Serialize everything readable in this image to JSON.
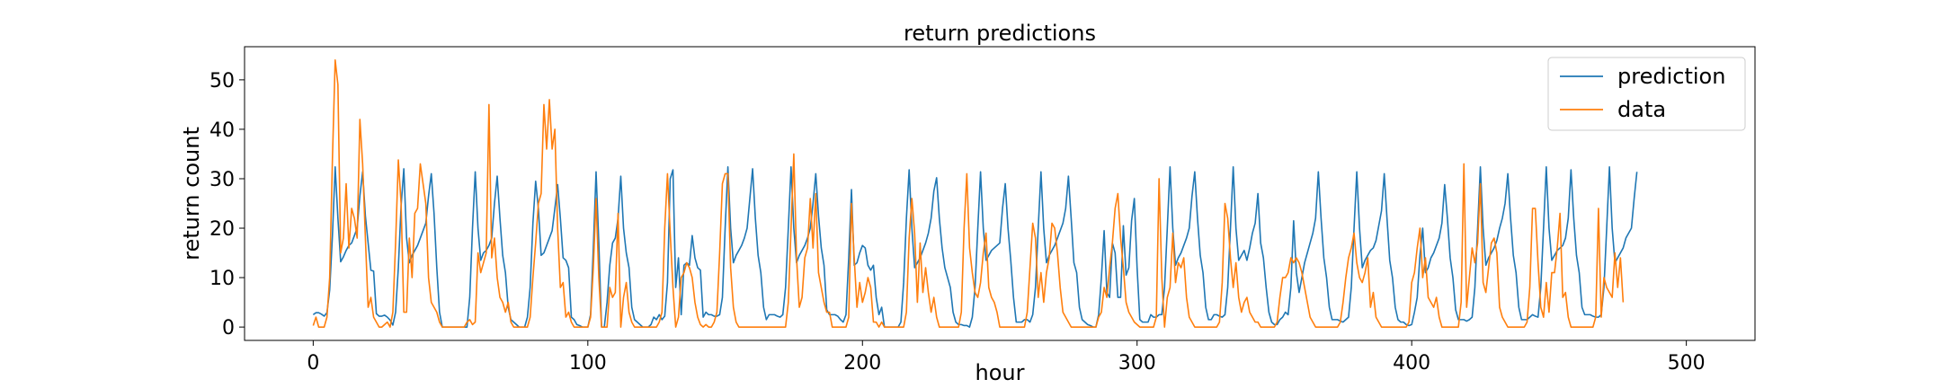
{
  "chart_data": {
    "type": "line",
    "title": "return predictions",
    "xlabel": "hour",
    "ylabel": "return count",
    "xlim": [
      -25,
      525
    ],
    "ylim": [
      -2.7,
      56.7
    ],
    "xticks": [
      0,
      100,
      200,
      300,
      400,
      500
    ],
    "yticks": [
      0,
      10,
      20,
      30,
      40,
      50
    ],
    "grid": false,
    "legend_position": "top-right",
    "colors": {
      "prediction": "#1f77b4",
      "data": "#ff7f0e"
    },
    "series": [
      {
        "name": "prediction",
        "color": "#1f77b4",
        "values": [
          2.5,
          2.9,
          2.9,
          2.6,
          2.2,
          2.9,
          7.5,
          18.5,
          32.4,
          22.0,
          13.2,
          14.2,
          15.5,
          16.5,
          17.0,
          18.5,
          20.0,
          26.5,
          31.4,
          22.5,
          17.0,
          11.5,
          11.3,
          2.7,
          2.2,
          2.2,
          2.4,
          2.0,
          1.4,
          0.4,
          3.0,
          12.0,
          24.5,
          32.0,
          18.0,
          13.0,
          14.5,
          15.5,
          16.5,
          18.0,
          19.5,
          21.0,
          26.5,
          31.0,
          23.0,
          12.0,
          3.0,
          0.0,
          0.0,
          0.0,
          0.0,
          0.0,
          0.0,
          0.0,
          0.0,
          0.0,
          0.0,
          6.0,
          20.0,
          31.4,
          20.0,
          13.5,
          15.0,
          15.5,
          16.5,
          18.0,
          25.0,
          30.5,
          22.0,
          14.5,
          11.0,
          4.0,
          1.5,
          1.0,
          0.5,
          0.0,
          0.0,
          0.0,
          2.0,
          8.0,
          21.0,
          29.5,
          24.0,
          14.5,
          15.0,
          16.5,
          18.0,
          19.5,
          24.0,
          28.8,
          22.0,
          14.0,
          13.5,
          12.0,
          2.0,
          1.5,
          0.5,
          0.3,
          0.0,
          0.0,
          0.0,
          2.5,
          16.0,
          31.4,
          17.0,
          0.0,
          0.0,
          5.0,
          12.5,
          17.0,
          18.0,
          22.0,
          30.5,
          20.0,
          15.0,
          12.0,
          4.0,
          1.5,
          1.0,
          0.5,
          0.0,
          0.0,
          0.0,
          0.5,
          2.0,
          1.5,
          2.5,
          1.5,
          2.2,
          9.0,
          30.0,
          31.8,
          8.0,
          14.0,
          2.5,
          12.5,
          13.0,
          12.5,
          18.5,
          14.0,
          12.0,
          11.5,
          2.0,
          3.0,
          2.5,
          2.5,
          2.2,
          2.2,
          2.5,
          6.0,
          20.0,
          32.4,
          20.0,
          13.0,
          14.5,
          15.5,
          16.5,
          18.0,
          20.0,
          26.0,
          32.0,
          22.0,
          14.5,
          11.0,
          4.0,
          1.5,
          2.5,
          2.5,
          2.5,
          2.2,
          2.0,
          2.5,
          8.0,
          20.0,
          32.4,
          20.0,
          13.0,
          14.5,
          15.5,
          16.5,
          18.0,
          20.0,
          25.0,
          31.0,
          22.5,
          16.0,
          12.5,
          3.5,
          2.5,
          2.5,
          2.5,
          2.2,
          1.5,
          1.0,
          2.5,
          14.0,
          27.8,
          12.5,
          13.0,
          15.0,
          16.5,
          16.0,
          12.5,
          11.5,
          12.5,
          6.0,
          2.5,
          4.0,
          0.0,
          0.0,
          0.0,
          0.0,
          0.0,
          0.0,
          1.0,
          9.0,
          22.0,
          31.8,
          20.0,
          12.0,
          13.0,
          14.0,
          15.5,
          17.0,
          19.0,
          22.0,
          27.5,
          30.2,
          22.0,
          16.0,
          12.0,
          10.0,
          8.0,
          3.0,
          1.0,
          0.5,
          0.5,
          0.3,
          0.3,
          0.0,
          2.0,
          8.0,
          20.0,
          31.4,
          20.0,
          13.5,
          14.5,
          15.5,
          16.0,
          16.5,
          17.0,
          24.0,
          29.0,
          20.0,
          13.5,
          6.0,
          1.0,
          1.0,
          1.0,
          1.5,
          1.5,
          1.0,
          2.5,
          8.0,
          20.0,
          31.4,
          20.0,
          13.0,
          14.5,
          15.5,
          16.5,
          18.0,
          19.5,
          21.0,
          24.0,
          30.5,
          22.0,
          13.0,
          11.0,
          4.0,
          1.5,
          1.0,
          0.5,
          0.3,
          0.0,
          0.0,
          2.5,
          10.0,
          19.5,
          7.0,
          6.0,
          17.0,
          15.0,
          6.0,
          6.0,
          20.5,
          10.5,
          12.0,
          21.5,
          26.0,
          12.0,
          1.5,
          1.0,
          1.0,
          1.0,
          2.5,
          2.0,
          2.0,
          2.5,
          2.5,
          8.0,
          20.0,
          32.4,
          20.0,
          12.5,
          14.0,
          15.0,
          16.5,
          18.0,
          20.0,
          26.5,
          31.4,
          22.0,
          14.5,
          11.0,
          4.0,
          1.5,
          1.5,
          2.5,
          2.5,
          2.2,
          2.0,
          2.5,
          8.0,
          20.0,
          32.4,
          20.0,
          13.5,
          14.5,
          15.5,
          13.5,
          16.0,
          19.0,
          21.0,
          27.0,
          17.0,
          14.0,
          8.0,
          3.0,
          1.0,
          0.5,
          0.5,
          1.5,
          2.0,
          3.0,
          2.5,
          8.0,
          21.5,
          11.0,
          7.0,
          10.0,
          13.0,
          15.0,
          17.0,
          19.0,
          22.0,
          31.4,
          22.0,
          14.0,
          10.0,
          4.0,
          1.5,
          1.5,
          1.5,
          1.2,
          1.0,
          1.5,
          2.0,
          8.0,
          20.0,
          31.4,
          20.0,
          12.0,
          13.5,
          14.5,
          15.5,
          16.0,
          17.5,
          20.5,
          23.5,
          31.0,
          22.0,
          13.5,
          10.0,
          4.0,
          1.5,
          1.0,
          1.0,
          0.5,
          0.3,
          0.5,
          3.0,
          6.0,
          14.5,
          20.0,
          11.0,
          12.0,
          14.0,
          15.0,
          16.5,
          18.0,
          21.0,
          28.8,
          22.0,
          14.0,
          10.0,
          3.5,
          1.5,
          1.5,
          1.5,
          1.2,
          1.5,
          2.0,
          8.0,
          20.0,
          32.4,
          20.0,
          12.5,
          14.0,
          15.0,
          16.0,
          17.5,
          20.0,
          22.0,
          25.0,
          31.0,
          22.0,
          14.5,
          11.0,
          4.0,
          1.5,
          1.5,
          1.5,
          2.0,
          2.5,
          2.2,
          2.0,
          8.0,
          20.0,
          32.4,
          20.0,
          13.5,
          14.5,
          15.5,
          16.0,
          16.5,
          18.0,
          22.0,
          31.8,
          22.0,
          14.5,
          11.0,
          4.0,
          2.5,
          2.5,
          2.5,
          2.2,
          2.0,
          2.0,
          2.5,
          8.0,
          20.0,
          32.4,
          20.0,
          13.0,
          14.0,
          15.0,
          16.0,
          18.0,
          19.0,
          20.0,
          26.0,
          31.4
        ]
      },
      {
        "name": "data",
        "color": "#ff7f0e",
        "values": [
          0.3,
          2.0,
          0.0,
          0.0,
          0.0,
          2.0,
          10.0,
          34.0,
          54.0,
          49.0,
          15.0,
          18.0,
          29.0,
          16.0,
          24.0,
          22.0,
          18.0,
          42.0,
          33.0,
          18.0,
          4.0,
          6.0,
          2.0,
          1.0,
          0.0,
          0.0,
          0.5,
          1.0,
          0.0,
          3.0,
          17.0,
          33.8,
          25.0,
          3.0,
          3.0,
          18.0,
          10.0,
          23.0,
          24.0,
          33.0,
          29.0,
          25.0,
          10.0,
          5.0,
          4.0,
          3.0,
          1.0,
          0.0,
          0.0,
          0.0,
          0.0,
          0.0,
          0.0,
          0.0,
          0.0,
          0.0,
          1.0,
          1.5,
          0.5,
          1.0,
          15.0,
          11.0,
          13.0,
          15.0,
          45.0,
          14.0,
          18.0,
          10.0,
          6.0,
          5.0,
          3.0,
          5.0,
          1.0,
          0.0,
          0.0,
          0.0,
          0.0,
          0.0,
          0.0,
          2.0,
          10.0,
          17.0,
          25.0,
          27.0,
          45.0,
          36.0,
          46.0,
          36.0,
          40.0,
          20.0,
          8.0,
          9.0,
          2.0,
          3.0,
          1.0,
          0.0,
          0.0,
          0.0,
          0.0,
          0.0,
          0.0,
          2.0,
          12.0,
          26.0,
          10.0,
          0.0,
          0.0,
          0.0,
          8.0,
          6.0,
          7.0,
          23.0,
          0.0,
          6.0,
          9.0,
          3.0,
          1.0,
          0.0,
          0.0,
          0.0,
          0.0,
          0.0,
          0.0,
          0.0,
          0.0,
          0.0,
          1.0,
          3.0,
          20.0,
          31.0,
          19.0,
          8.0,
          0.0,
          2.0,
          10.0,
          11.0,
          13.0,
          12.0,
          10.0,
          5.0,
          2.0,
          0.5,
          0.0,
          0.5,
          0.0,
          0.0,
          1.0,
          3.0,
          15.0,
          29.0,
          31.0,
          31.0,
          12.0,
          4.0,
          1.0,
          0.0,
          0.0,
          0.0,
          0.0,
          0.0,
          0.0,
          0.0,
          0.0,
          0.0,
          0.0,
          0.0,
          0.0,
          0.0,
          0.0,
          0.0,
          0.0,
          0.0,
          0.0,
          5.0,
          20.0,
          35.0,
          14.0,
          4.0,
          6.0,
          14.0,
          16.0,
          26.0,
          16.0,
          27.0,
          11.0,
          8.0,
          5.0,
          3.0,
          3.0,
          0.0,
          0.0,
          0.0,
          0.0,
          0.0,
          0.0,
          2.0,
          25.0,
          14.0,
          4.0,
          9.0,
          5.0,
          7.0,
          10.0,
          8.0,
          1.0,
          1.0,
          0.0,
          1.0,
          0.0,
          0.0,
          0.0,
          0.0,
          0.0,
          0.0,
          0.0,
          0.0,
          3.0,
          18.0,
          26.0,
          19.0,
          5.0,
          17.0,
          7.0,
          12.0,
          7.0,
          3.0,
          6.0,
          2.0,
          0.0,
          0.0,
          0.0,
          0.0,
          0.0,
          0.0,
          0.0,
          0.0,
          3.0,
          20.0,
          31.0,
          16.0,
          11.0,
          7.0,
          6.0,
          9.0,
          15.0,
          19.0,
          8.0,
          6.0,
          5.0,
          3.0,
          0.0,
          0.0,
          0.0,
          0.0,
          0.0,
          0.0,
          0.0,
          0.0,
          0.0,
          0.0,
          3.0,
          12.0,
          21.0,
          18.0,
          6.0,
          11.0,
          5.0,
          11.0,
          14.0,
          21.0,
          20.0,
          15.0,
          8.0,
          3.0,
          2.0,
          1.0,
          0.0,
          0.0,
          0.0,
          0.0,
          0.0,
          0.0,
          0.0,
          0.0,
          0.0,
          0.0,
          2.0,
          3.0,
          8.0,
          6.0,
          12.0,
          17.0,
          24.0,
          27.0,
          18.0,
          12.0,
          5.0,
          3.0,
          2.0,
          1.0,
          0.5,
          0.0,
          0.0,
          0.0,
          0.0,
          0.0,
          0.0,
          2.0,
          30.0,
          10.0,
          0.0,
          6.0,
          8.0,
          19.0,
          9.0,
          13.0,
          12.0,
          14.0,
          6.0,
          2.0,
          1.0,
          0.0,
          0.0,
          0.0,
          0.0,
          0.0,
          0.0,
          0.0,
          0.0,
          0.0,
          1.0,
          9.0,
          25.0,
          22.0,
          14.0,
          8.0,
          13.0,
          6.0,
          3.0,
          5.0,
          6.0,
          3.0,
          2.0,
          1.0,
          1.0,
          0.0,
          0.0,
          0.0,
          0.0,
          0.0,
          0.0,
          1.0,
          6.0,
          10.0,
          10.0,
          11.0,
          14.0,
          13.0,
          14.0,
          13.0,
          11.0,
          8.0,
          5.0,
          2.0,
          1.0,
          0.0,
          0.0,
          0.0,
          0.0,
          0.0,
          0.0,
          0.0,
          0.0,
          0.0,
          1.0,
          5.0,
          10.0,
          14.0,
          16.0,
          19.0,
          13.0,
          10.0,
          9.0,
          11.0,
          14.0,
          4.0,
          7.0,
          2.0,
          1.0,
          0.0,
          0.0,
          0.0,
          0.0,
          0.0,
          0.0,
          0.0,
          0.0,
          0.0,
          0.0,
          1.0,
          9.0,
          11.0,
          16.0,
          20.0,
          10.0,
          14.0,
          6.0,
          5.0,
          4.0,
          6.0,
          2.0,
          0.0,
          0.0,
          0.0,
          0.0,
          0.0,
          0.0,
          0.0,
          5.0,
          33.0,
          4.0,
          10.0,
          16.0,
          13.0,
          17.0,
          29.0,
          9.0,
          7.0,
          12.0,
          17.0,
          18.0,
          15.0,
          4.0,
          2.0,
          1.0,
          0.0,
          0.0,
          0.0,
          0.0,
          0.0,
          0.0,
          0.0,
          1.0,
          8.0,
          24.0,
          24.0,
          13.0,
          4.0,
          2.0,
          9.0,
          3.0,
          11.0,
          11.0,
          16.0,
          23.0,
          6.0,
          7.0,
          2.0,
          0.0,
          0.0,
          0.0,
          0.0,
          0.0,
          0.0,
          0.0,
          0.0,
          0.0,
          2.0,
          24.0,
          2.0,
          10.0,
          8.0,
          7.0,
          6.0,
          15.0,
          8.0,
          14.0,
          5.0
        ]
      }
    ]
  }
}
